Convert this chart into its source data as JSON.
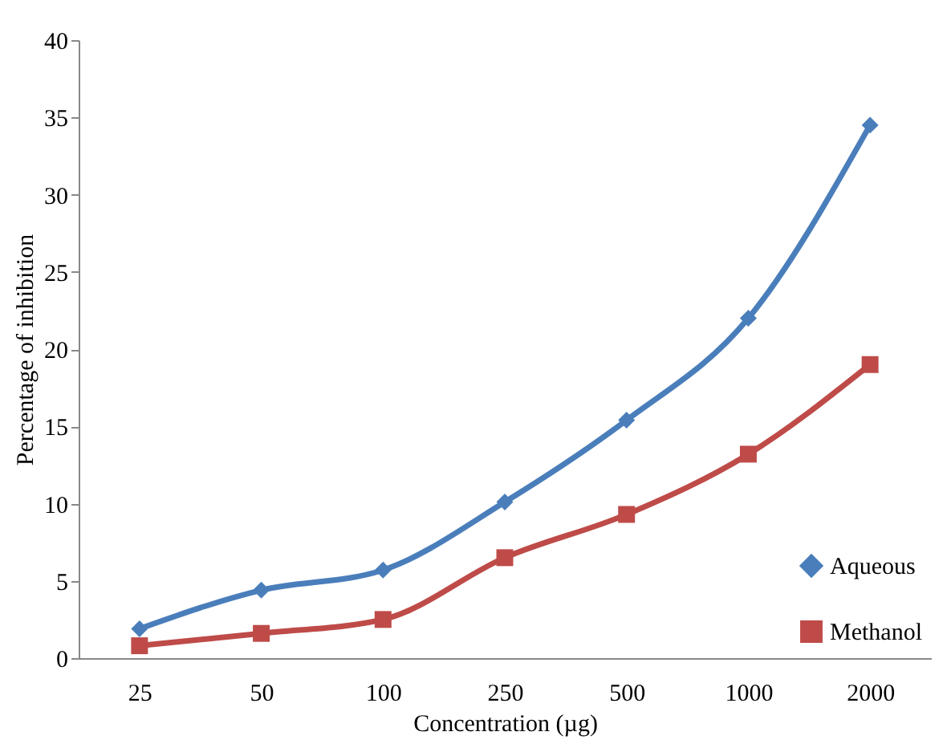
{
  "chart_data": {
    "type": "line",
    "xlabel": "Concentration (µg)",
    "ylabel": "Percentage of inhibition",
    "categories": [
      "25",
      "50",
      "100",
      "250",
      "500",
      "1000",
      "2000"
    ],
    "ylim": [
      0,
      40
    ],
    "yticks": [
      0,
      5,
      10,
      15,
      20,
      25,
      30,
      35,
      40
    ],
    "grid": false,
    "legend": "bottom right",
    "line_style": "solid",
    "series": [
      {
        "name": "Aqueous",
        "color": "#4a7ebb",
        "marker": "diamond",
        "values": [
          1.9,
          4.4,
          5.7,
          10.1,
          15.4,
          22,
          34.5
        ]
      },
      {
        "name": "Methanol",
        "color": "#be4b48",
        "marker": "square",
        "values": [
          0.8,
          1.6,
          2.5,
          6.5,
          9.3,
          13.2,
          19
        ]
      }
    ]
  }
}
